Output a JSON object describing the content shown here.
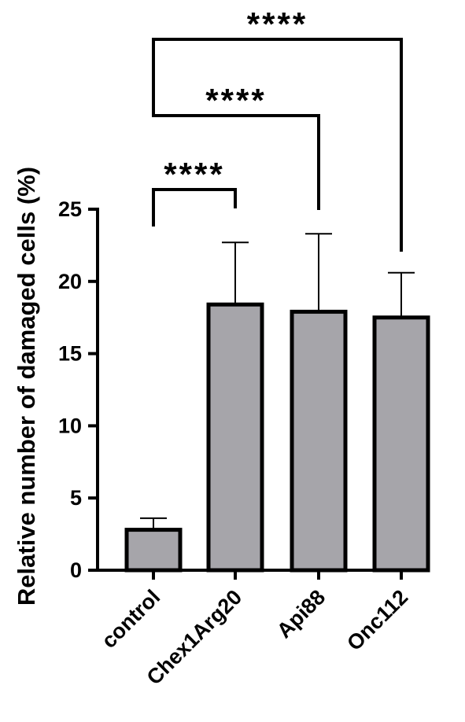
{
  "chart_data": {
    "type": "bar",
    "categories": [
      "control",
      "Chex1Arg20",
      "Api88",
      "Onc112"
    ],
    "values": [
      2.8,
      18.4,
      17.9,
      17.5
    ],
    "error_upper": [
      3.6,
      22.7,
      23.3,
      20.6
    ],
    "title": "",
    "xlabel": "",
    "ylabel": "Relative number of damaged cells (%)",
    "ylim": [
      0,
      25
    ],
    "yticks": [
      0,
      5,
      10,
      15,
      20,
      25
    ],
    "bar_fill": "#a6a5aa",
    "bar_stroke": "#000000",
    "grid": false,
    "legend": "none",
    "significance": [
      {
        "from": "control",
        "to": "Chex1Arg20",
        "label": "****"
      },
      {
        "from": "control",
        "to": "Api88",
        "label": "****"
      },
      {
        "from": "control",
        "to": "Onc112",
        "label": "****"
      }
    ]
  }
}
